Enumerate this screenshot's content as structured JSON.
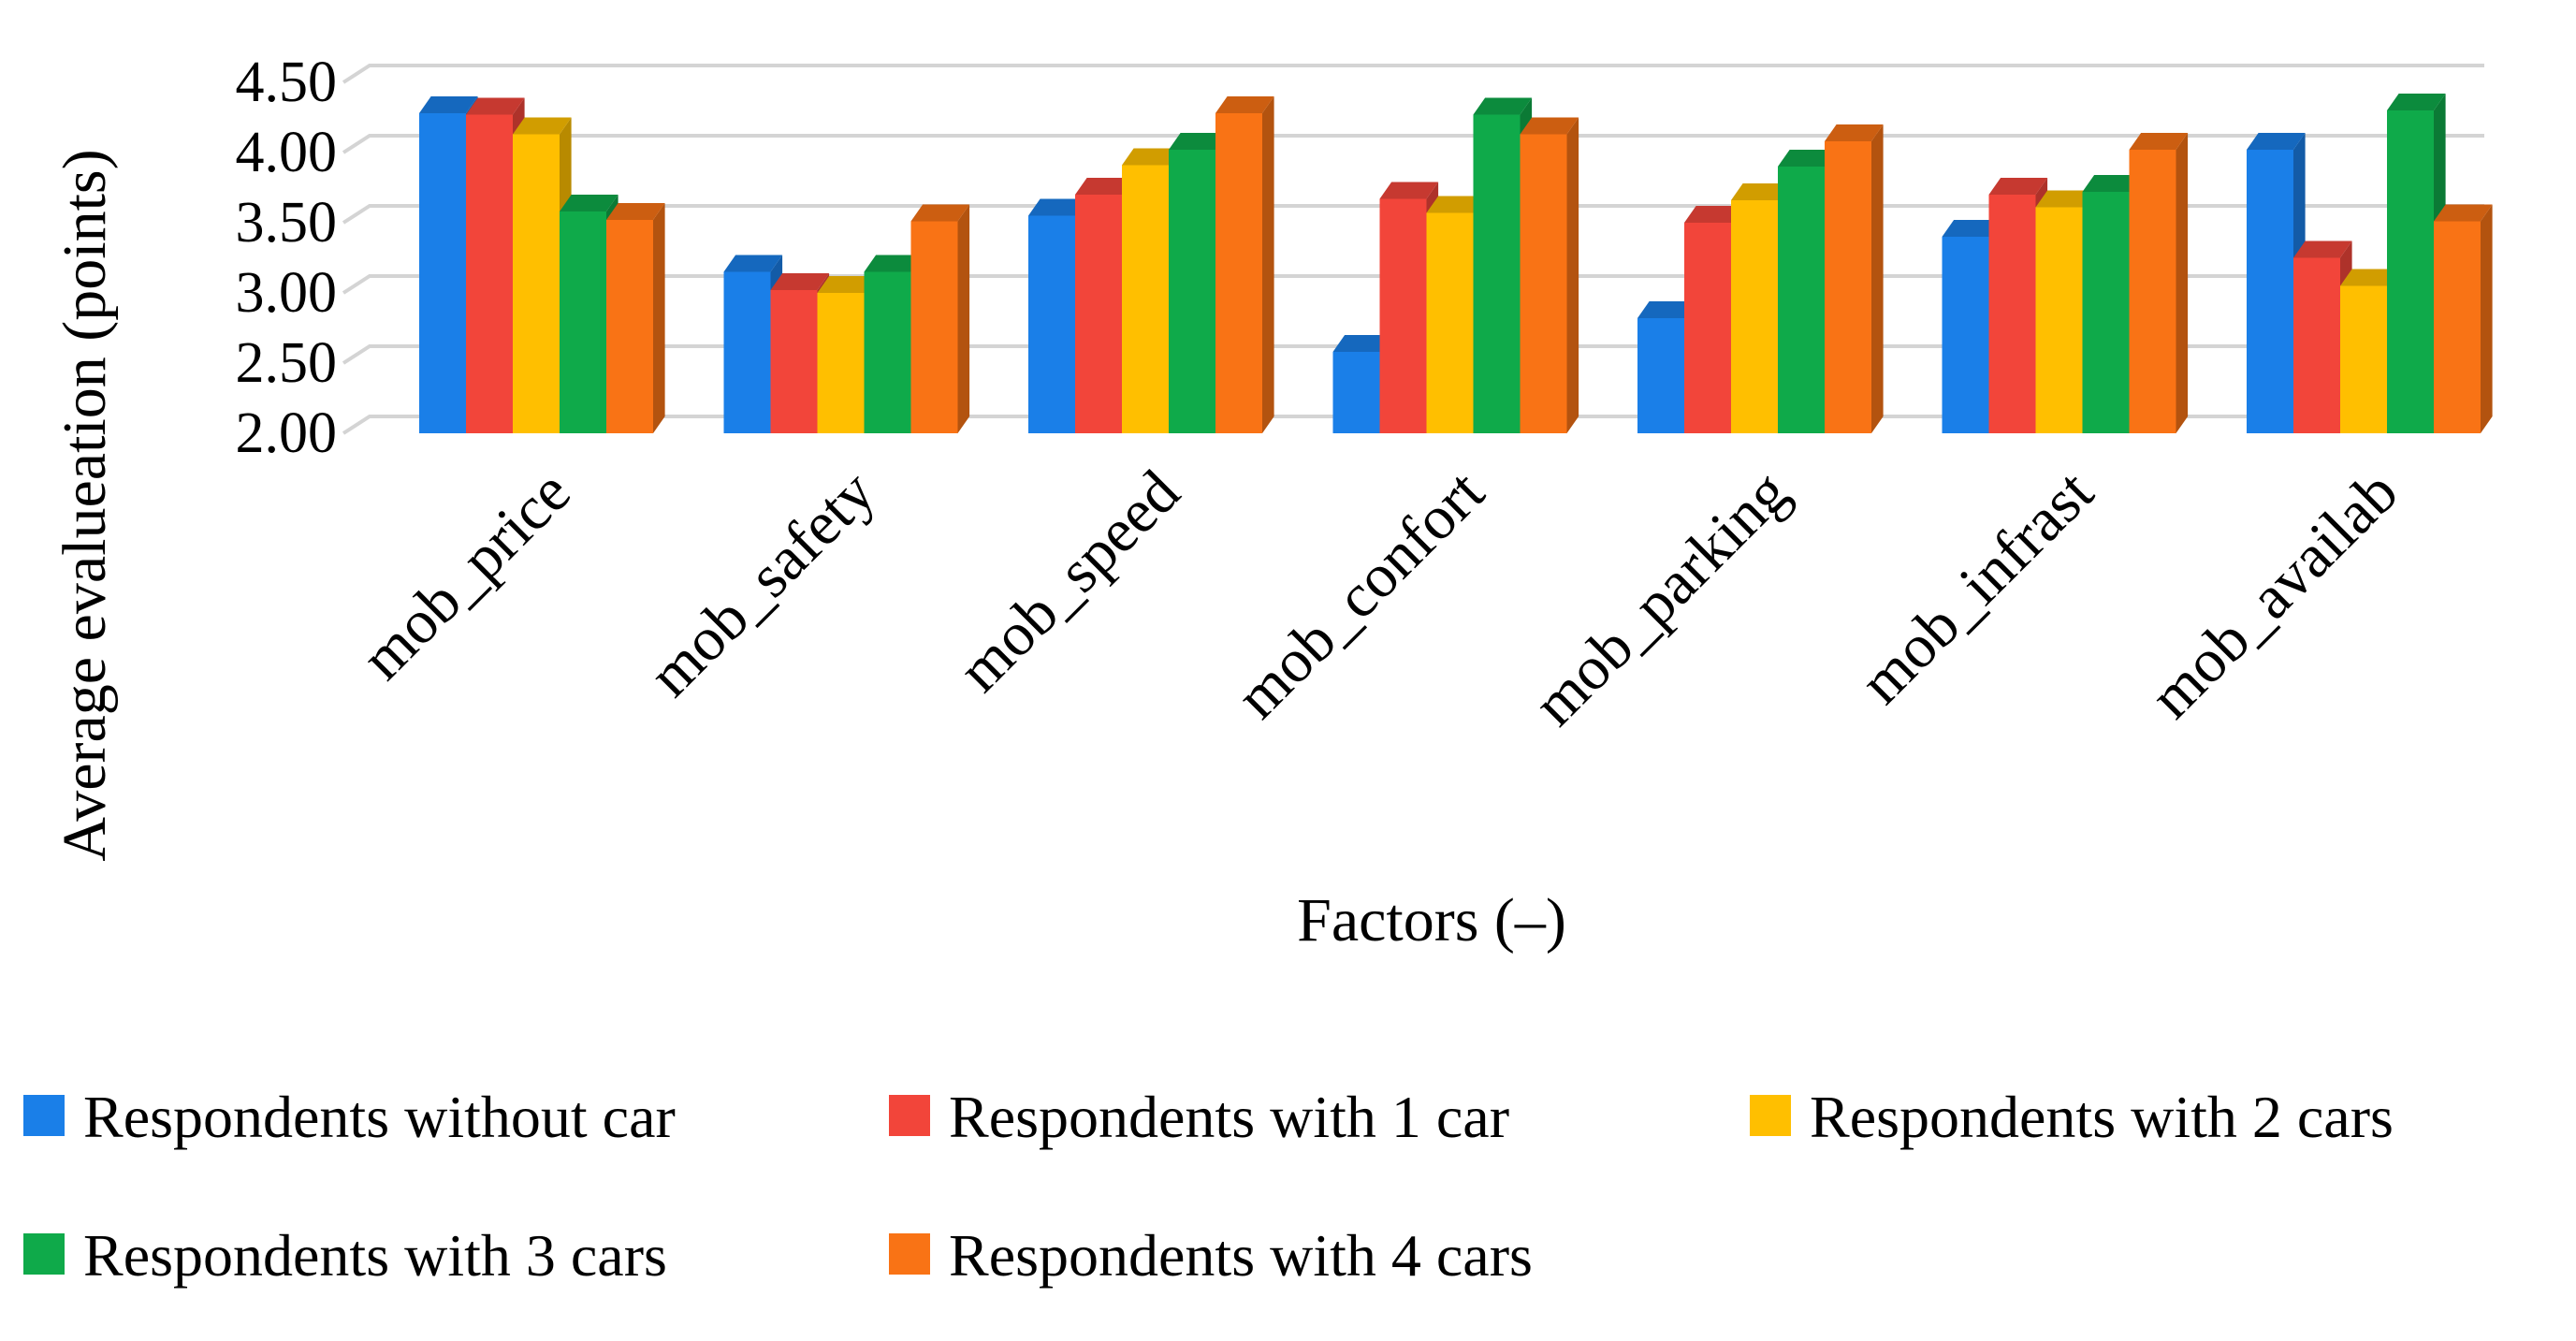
{
  "chart_data": {
    "type": "bar",
    "title": "",
    "xlabel": "Factors (–)",
    "ylabel": "Average evalueation (points)",
    "ylim": [
      2.0,
      4.5
    ],
    "yticks": [
      "2.00",
      "2.50",
      "3.00",
      "3.50",
      "4.00",
      "4.50"
    ],
    "grid": true,
    "legend_position": "bottom",
    "categories": [
      "mob_price",
      "mob_safety",
      "mob_speed",
      "mob_confort",
      "mob_parking",
      "mob_infrast",
      "mob_availab"
    ],
    "series": [
      {
        "name": "Respondents without car",
        "color": "#1a7fe8",
        "values": [
          4.28,
          3.15,
          3.55,
          2.58,
          2.82,
          3.4,
          4.02
        ]
      },
      {
        "name": "Respondents with 1 car",
        "color": "#f2453a",
        "values": [
          4.27,
          3.02,
          3.7,
          3.67,
          3.5,
          3.7,
          3.25
        ]
      },
      {
        "name": "Respondents with 2 cars",
        "color": "#ffbf00",
        "values": [
          4.13,
          3.0,
          3.91,
          3.57,
          3.66,
          3.61,
          3.05
        ]
      },
      {
        "name": "Respondents with 3 cars",
        "color": "#0faa4a",
        "values": [
          3.58,
          3.15,
          4.02,
          4.27,
          3.9,
          3.72,
          4.3
        ]
      },
      {
        "name": "Respondents with 4 cars",
        "color": "#f97315",
        "values": [
          3.52,
          3.51,
          4.28,
          4.13,
          4.08,
          4.02,
          3.51
        ]
      }
    ]
  }
}
